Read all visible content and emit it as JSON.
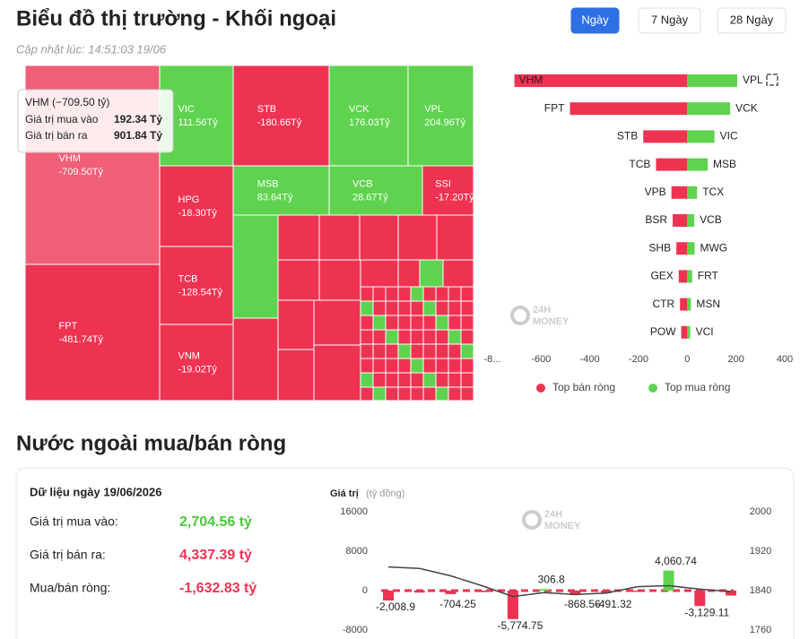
{
  "header": {
    "title": "Biểu đồ thị trường - Khối ngoại",
    "updated": "Cập nhật lúc: 14:51:03 19/06",
    "tabs": [
      "Ngày",
      "7 Ngày",
      "28 Ngày"
    ],
    "active_tab": 0
  },
  "chart_data": [
    {
      "type": "treemap",
      "categories": [
        "VHM",
        "VIC",
        "STB",
        "VCK",
        "VPL",
        "MSB",
        "VCB",
        "SSI",
        "HPG",
        "TCB",
        "FPT",
        "VNM"
      ],
      "values": [
        -709.5,
        111.56,
        -180.66,
        176.03,
        204.96,
        83.64,
        28.67,
        -17.2,
        -18.3,
        -128.54,
        -481.74,
        -19.02
      ],
      "value_labels": [
        "-709.50Tỷ",
        "111.56Tỷ",
        "-180.66Tỷ",
        "176.03Tỷ",
        "204.96Tỷ",
        "83.64Tỷ",
        "28.67Tỷ",
        "-17.20Tỷ",
        "-18.30Tỷ",
        "-128.54Tỷ",
        "-481.74Tỷ",
        "-19.02Tỷ"
      ],
      "positive_color": "#5fd34f",
      "negative_color": "#ee3352",
      "tooltip": {
        "title": "VHM (−709.50 tỷ)",
        "lines": [
          [
            "Giá trị mua vào",
            "192.34 Tỷ"
          ],
          [
            "Giá trị bán ra",
            "901.84 Tỷ"
          ]
        ]
      }
    },
    {
      "type": "diverging-bar",
      "series": [
        {
          "name": "Top bán ròng",
          "color": "#ee3352",
          "categories": [
            "VHM",
            "FPT",
            "STB",
            "TCB",
            "VPB",
            "BSR",
            "SHB",
            "GEX",
            "CTR",
            "POW"
          ],
          "values": [
            -709.5,
            -481.74,
            -180.66,
            -128.54,
            -65,
            -60,
            -45,
            -35,
            -30,
            -25
          ]
        },
        {
          "name": "Top mua ròng",
          "color": "#5fd34f",
          "categories": [
            "VPL",
            "VCK",
            "VIC",
            "MSB",
            "TCX",
            "VCB",
            "MWG",
            "FRT",
            "MSN",
            "VCI"
          ],
          "values": [
            204.96,
            176.03,
            111.56,
            83.64,
            40,
            28.67,
            30,
            20,
            15,
            12
          ]
        }
      ],
      "xlim": [
        -800,
        400
      ],
      "xticks": [
        {
          "value": -800,
          "label": "-8..."
        },
        -600,
        -400,
        -200,
        0,
        200,
        400
      ],
      "legend": "bottom",
      "watermark": [
        "24H",
        "MONEY"
      ]
    },
    {
      "type": "bar-line",
      "y_label": "Giá trị",
      "y_unit": "(tỷ đồng)",
      "ylim": [
        -8000,
        16000
      ],
      "yticks": [
        16000,
        8000,
        0,
        -8000
      ],
      "y2lim": [
        1760,
        2000
      ],
      "y2ticks": [
        2000,
        1920,
        1840,
        1760
      ],
      "series": [
        {
          "type": "bar",
          "positive_color": "#5fd34f",
          "negative_color": "#ee3352",
          "values": [
            -2008.9,
            -400,
            -704.25,
            -300,
            -5774.75,
            306.8,
            -868.56,
            -491.32,
            -250,
            4060.74,
            -3129.11,
            -1000
          ],
          "value_labels": [
            "-2,008.9",
            null,
            "-704.25",
            null,
            "-5,774.75",
            "306.8",
            "-868.56",
            "-491.32",
            null,
            "4,060.74",
            "-3,129.11",
            null
          ]
        },
        {
          "type": "line",
          "axis": "y2",
          "color": "#444",
          "values": [
            1888,
            1885,
            1870,
            1850,
            1828,
            1836,
            1832,
            1835,
            1848,
            1850,
            1843,
            1838
          ]
        }
      ],
      "watermark": [
        "24H",
        "MONEY"
      ]
    }
  ],
  "section_title": "Nước ngoài mua/bán ròng",
  "summary": {
    "date": "Dữ liệu ngày 19/06/2026",
    "rows": [
      {
        "label": "Giá trị mua vào:",
        "value": "2,704.56 tỷ",
        "color": "#4cc63c"
      },
      {
        "label": "Giá trị bán ra:",
        "value": "4,337.39 tỷ",
        "color": "#ee3352"
      },
      {
        "label": "Mua/bán ròng:",
        "value": "-1,632.83 tỷ",
        "color": "#ee3352"
      }
    ]
  }
}
